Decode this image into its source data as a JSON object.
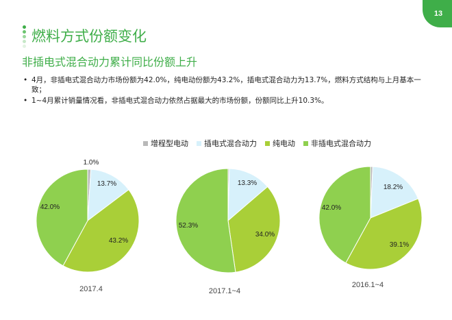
{
  "page_number": "13",
  "title": "燃料方式份额变化",
  "subtitle": "非插电式混合动力累计同比份额上升",
  "bullets": [
    "4月，非插电式混合动力市场份额为42.0%，纯电动份额为43.2%，插电式混合动力为13.7%，燃料方式结构与上月基本一致；",
    "1~4月累计销量情况看，非插电式混合动力依然占据最大的市场份额，份额同比上升10.3%。"
  ],
  "colors": {
    "accent": "#3fae49",
    "增程型电动": "#b9b9b9",
    "插电式混合动力": "#d7f1fb",
    "纯电动": "#a9cf38",
    "非插电式混合动力": "#8fd04f"
  },
  "chart_data": [
    {
      "type": "pie",
      "caption": "2017.4",
      "legend": [
        "增程型电动",
        "插电式混合动力",
        "纯电动",
        "非插电式混合动力"
      ],
      "slices": [
        {
          "name": "增程型电动",
          "value": 1.0,
          "label": "1.0%"
        },
        {
          "name": "插电式混合动力",
          "value": 13.7,
          "label": "13.7%"
        },
        {
          "name": "纯电动",
          "value": 43.2,
          "label": "43.2%"
        },
        {
          "name": "非插电式混合动力",
          "value": 42.0,
          "label": "42.0%"
        }
      ]
    },
    {
      "type": "pie",
      "caption": "2017.1~4",
      "legend": [
        "增程型电动",
        "插电式混合动力",
        "纯电动",
        "非插电式混合动力"
      ],
      "slices": [
        {
          "name": "增程型电动",
          "value": 0.4,
          "label": ""
        },
        {
          "name": "插电式混合动力",
          "value": 13.3,
          "label": "13.3%"
        },
        {
          "name": "纯电动",
          "value": 34.0,
          "label": "34.0%"
        },
        {
          "name": "非插电式混合动力",
          "value": 52.3,
          "label": "52.3%"
        }
      ]
    },
    {
      "type": "pie",
      "caption": "2016.1~4",
      "legend": [
        "增程型电动",
        "插电式混合动力",
        "纯电动",
        "非插电式混合动力"
      ],
      "slices": [
        {
          "name": "增程型电动",
          "value": 0.7,
          "label": ""
        },
        {
          "name": "插电式混合动力",
          "value": 18.2,
          "label": "18.2%"
        },
        {
          "name": "纯电动",
          "value": 39.1,
          "label": "39.1%"
        },
        {
          "name": "非插电式混合动力",
          "value": 42.0,
          "label": "42.0%"
        }
      ]
    }
  ]
}
